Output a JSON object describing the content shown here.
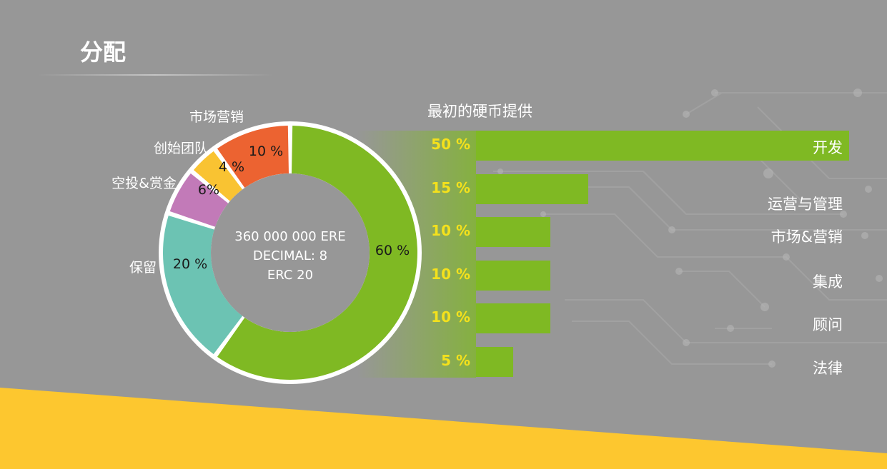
{
  "page": {
    "title": "分配"
  },
  "chart_data": [
    {
      "type": "pie",
      "variant": "donut",
      "center_text": [
        "360 000 000 ERE",
        "DECIMAL: 8",
        "ERC 20"
      ],
      "slices": [
        {
          "label": "",
          "value": 60,
          "value_label": "60 %",
          "color": "#7fb923"
        },
        {
          "label": "保留",
          "value": 20,
          "value_label": "20 %",
          "color": "#6cc3b3"
        },
        {
          "label": "空投&赏金",
          "value": 6,
          "value_label": "6%",
          "color": "#c27ab8"
        },
        {
          "label": "创始团队",
          "value": 4,
          "value_label": "4 %",
          "color": "#f9c332"
        },
        {
          "label": "市场营销",
          "value": 10,
          "value_label": "10 %",
          "color": "#ec6331"
        }
      ]
    },
    {
      "type": "bar",
      "orientation": "horizontal",
      "title": "最初的硬币提供",
      "categories": [
        "开发",
        "运营与管理",
        "市场&营销",
        "集成",
        "顾问",
        "法律"
      ],
      "values": [
        50,
        15,
        10,
        10,
        10,
        5
      ],
      "value_labels": [
        "50 %",
        "15 %",
        "10 %",
        "10 %",
        "10 %",
        "5 %"
      ],
      "xlim": [
        0,
        50
      ],
      "bar_color": "#7fb923",
      "label_color": "#f4e11c"
    }
  ]
}
